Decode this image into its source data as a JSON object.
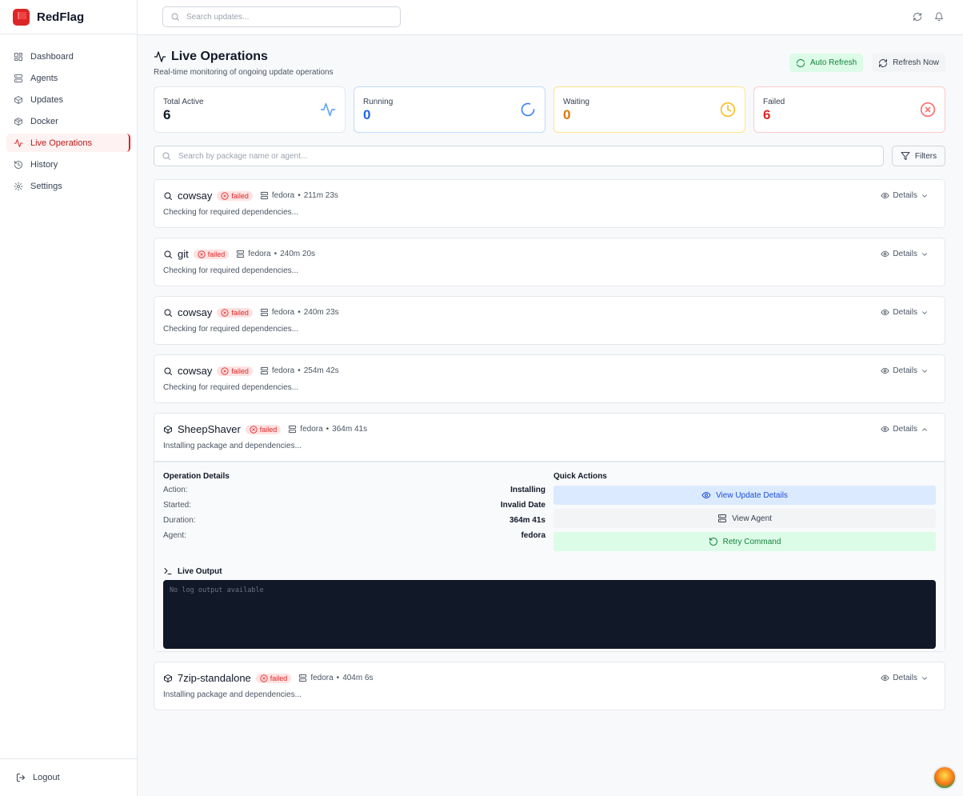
{
  "app": {
    "name": "RedFlag"
  },
  "sidebar": {
    "items": [
      {
        "label": "Dashboard",
        "icon": "dashboard-icon"
      },
      {
        "label": "Agents",
        "icon": "server-icon"
      },
      {
        "label": "Updates",
        "icon": "package-icon"
      },
      {
        "label": "Docker",
        "icon": "container-icon"
      },
      {
        "label": "Live Operations",
        "icon": "activity-icon",
        "active": true
      },
      {
        "label": "History",
        "icon": "history-icon"
      },
      {
        "label": "Settings",
        "icon": "gear-icon"
      }
    ],
    "logout": "Logout"
  },
  "topbar": {
    "search_placeholder": "Search updates..."
  },
  "page": {
    "title": "Live Operations",
    "subtitle": "Real-time monitoring of ongoing update operations",
    "auto_refresh": "Auto Refresh",
    "refresh_now": "Refresh Now"
  },
  "stats": [
    {
      "label": "Total Active",
      "value": "6",
      "color": "#111827"
    },
    {
      "label": "Running",
      "value": "0",
      "color": "#2563eb"
    },
    {
      "label": "Waiting",
      "value": "0",
      "color": "#d97706"
    },
    {
      "label": "Failed",
      "value": "6",
      "color": "#dc2626"
    }
  ],
  "search": {
    "placeholder": "Search by package name or agent...",
    "filters": "Filters"
  },
  "operations": [
    {
      "name": "cowsay",
      "status": "failed",
      "agent": "fedora",
      "duration": "211m 23s",
      "message": "Checking for required dependencies...",
      "icon": "search-icon"
    },
    {
      "name": "git",
      "status": "failed",
      "agent": "fedora",
      "duration": "240m 20s",
      "message": "Checking for required dependencies...",
      "icon": "search-icon"
    },
    {
      "name": "cowsay",
      "status": "failed",
      "agent": "fedora",
      "duration": "240m 23s",
      "message": "Checking for required dependencies...",
      "icon": "search-icon"
    },
    {
      "name": "cowsay",
      "status": "failed",
      "agent": "fedora",
      "duration": "254m 42s",
      "message": "Checking for required dependencies...",
      "icon": "search-icon"
    },
    {
      "name": "SheepShaver",
      "status": "failed",
      "agent": "fedora",
      "duration": "364m 41s",
      "message": "Installing package and dependencies...",
      "icon": "package-icon",
      "expanded": true
    },
    {
      "name": "7zip-standalone",
      "status": "failed",
      "agent": "fedora",
      "duration": "404m 6s",
      "message": "Installing package and dependencies...",
      "icon": "package-icon"
    }
  ],
  "details_label": "Details",
  "expanded": {
    "op_details_title": "Operation Details",
    "rows": [
      {
        "k": "Action:",
        "v": "Installing"
      },
      {
        "k": "Started:",
        "v": "Invalid Date"
      },
      {
        "k": "Duration:",
        "v": "364m 41s"
      },
      {
        "k": "Agent:",
        "v": "fedora"
      }
    ],
    "quick_actions_title": "Quick Actions",
    "view_update": "View Update Details",
    "view_agent": "View Agent",
    "retry": "Retry Command",
    "live_output_title": "Live Output",
    "log": "No log output available"
  }
}
